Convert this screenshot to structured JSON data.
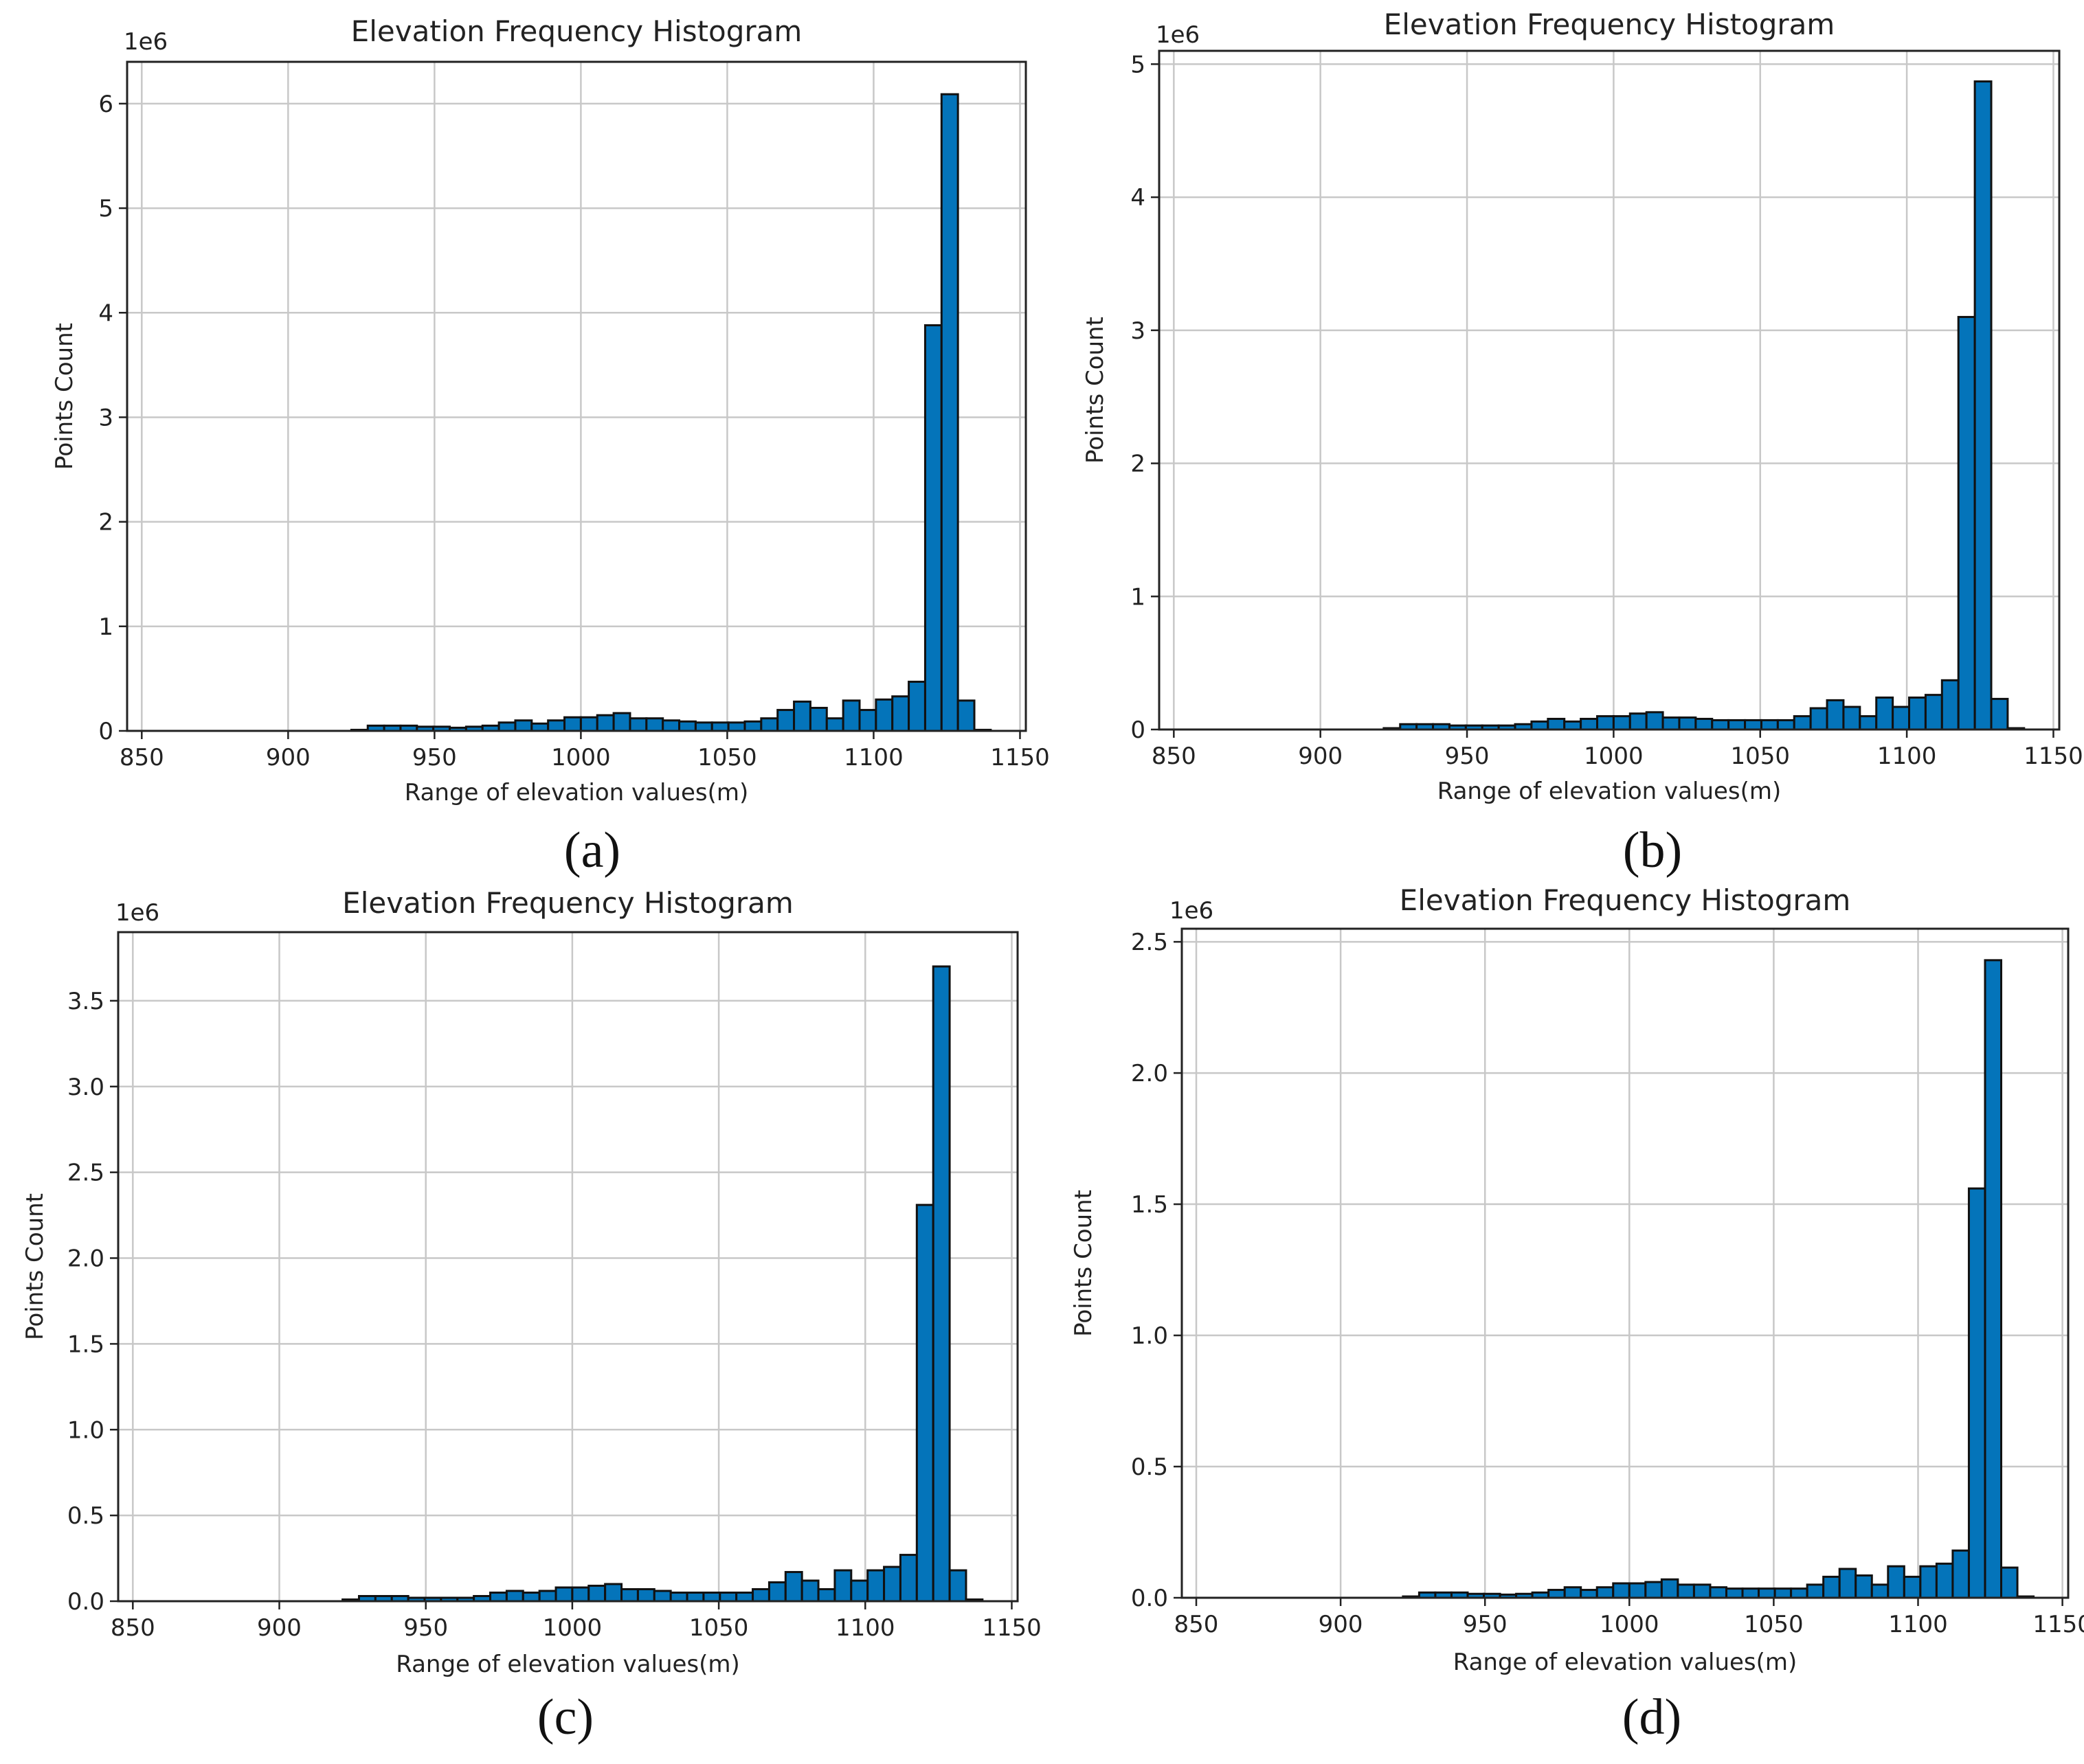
{
  "colors": {
    "bar_fill": "#0474ba",
    "bar_edge": "#111111",
    "grid": "#c8c8c8"
  },
  "captions": [
    "(a)",
    "(b)",
    "(c)",
    "(d)"
  ],
  "chart_data": [
    {
      "type": "bar",
      "title": "Elevation Frequency Histogram",
      "xlabel": "Range of elevation values(m)",
      "ylabel": "Points Count",
      "y_offset_label": "1e6",
      "xlim": [
        845,
        1152
      ],
      "ylim": [
        0,
        6.4
      ],
      "xticks": [
        850,
        900,
        950,
        1000,
        1050,
        1100,
        1150
      ],
      "yticks": [
        0,
        1,
        2,
        3,
        4,
        5,
        6
      ],
      "ytick_labels": [
        "0",
        "1",
        "2",
        "3",
        "4",
        "5",
        "6"
      ],
      "grid": true,
      "bin_start": 860,
      "bin_width": 5.6,
      "values": [
        0,
        0,
        0,
        0,
        0,
        0,
        0,
        0,
        0,
        0,
        0,
        0.01,
        0.05,
        0.05,
        0.05,
        0.04,
        0.04,
        0.03,
        0.04,
        0.05,
        0.08,
        0.1,
        0.07,
        0.1,
        0.13,
        0.13,
        0.15,
        0.17,
        0.12,
        0.12,
        0.1,
        0.09,
        0.08,
        0.08,
        0.08,
        0.09,
        0.12,
        0.2,
        0.28,
        0.22,
        0.12,
        0.29,
        0.2,
        0.3,
        0.33,
        0.47,
        3.88,
        6.09,
        0.29,
        0.01,
        0
      ]
    },
    {
      "type": "bar",
      "title": "Elevation Frequency Histogram",
      "xlabel": "Range of elevation values(m)",
      "ylabel": "Points Count",
      "y_offset_label": "1e6",
      "xlim": [
        845,
        1152
      ],
      "ylim": [
        0,
        5.1
      ],
      "xticks": [
        850,
        900,
        950,
        1000,
        1050,
        1100,
        1150
      ],
      "yticks": [
        0,
        1,
        2,
        3,
        4,
        5
      ],
      "ytick_labels": [
        "0",
        "1",
        "2",
        "3",
        "4",
        "5"
      ],
      "grid": true,
      "bin_start": 860,
      "bin_width": 5.6,
      "values": [
        0,
        0,
        0,
        0,
        0,
        0,
        0,
        0,
        0,
        0,
        0,
        0.01,
        0.04,
        0.04,
        0.04,
        0.03,
        0.03,
        0.03,
        0.03,
        0.04,
        0.06,
        0.08,
        0.06,
        0.08,
        0.1,
        0.1,
        0.12,
        0.13,
        0.09,
        0.09,
        0.08,
        0.07,
        0.07,
        0.07,
        0.07,
        0.07,
        0.1,
        0.16,
        0.22,
        0.17,
        0.1,
        0.24,
        0.17,
        0.24,
        0.26,
        0.37,
        3.1,
        4.87,
        0.23,
        0.01,
        0
      ]
    },
    {
      "type": "bar",
      "title": "Elevation Frequency Histogram",
      "xlabel": "Range of elevation values(m)",
      "ylabel": "Points Count",
      "y_offset_label": "1e6",
      "xlim": [
        845,
        1152
      ],
      "ylim": [
        0,
        3.9
      ],
      "xticks": [
        850,
        900,
        950,
        1000,
        1050,
        1100,
        1150
      ],
      "yticks": [
        0,
        0.5,
        1,
        1.5,
        2,
        2.5,
        3,
        3.5
      ],
      "ytick_labels": [
        "0.0",
        "0.5",
        "1.0",
        "1.5",
        "2.0",
        "2.5",
        "3.0",
        "3.5"
      ],
      "grid": true,
      "bin_start": 860,
      "bin_width": 5.6,
      "values": [
        0,
        0,
        0,
        0,
        0,
        0,
        0,
        0,
        0,
        0,
        0,
        0.01,
        0.03,
        0.03,
        0.03,
        0.02,
        0.02,
        0.02,
        0.02,
        0.03,
        0.05,
        0.06,
        0.05,
        0.06,
        0.08,
        0.08,
        0.09,
        0.1,
        0.07,
        0.07,
        0.06,
        0.05,
        0.05,
        0.05,
        0.05,
        0.05,
        0.07,
        0.11,
        0.17,
        0.12,
        0.07,
        0.18,
        0.12,
        0.18,
        0.2,
        0.27,
        2.31,
        3.7,
        0.18,
        0.01,
        0
      ]
    },
    {
      "type": "bar",
      "title": "Elevation Frequency Histogram",
      "xlabel": "Range of elevation values(m)",
      "ylabel": "Points Count",
      "y_offset_label": "1e6",
      "xlim": [
        845,
        1152
      ],
      "ylim": [
        0,
        2.55
      ],
      "xticks": [
        850,
        900,
        950,
        1000,
        1050,
        1100,
        1150
      ],
      "yticks": [
        0,
        0.5,
        1,
        1.5,
        2,
        2.5
      ],
      "ytick_labels": [
        "0.0",
        "0.5",
        "1.0",
        "1.5",
        "2.0",
        "2.5"
      ],
      "grid": true,
      "bin_start": 860,
      "bin_width": 5.6,
      "values": [
        0,
        0,
        0,
        0,
        0,
        0,
        0,
        0,
        0,
        0,
        0,
        0.005,
        0.02,
        0.02,
        0.02,
        0.015,
        0.015,
        0.012,
        0.015,
        0.02,
        0.03,
        0.04,
        0.03,
        0.04,
        0.055,
        0.055,
        0.06,
        0.07,
        0.05,
        0.05,
        0.04,
        0.035,
        0.035,
        0.035,
        0.035,
        0.035,
        0.05,
        0.08,
        0.11,
        0.085,
        0.05,
        0.12,
        0.08,
        0.12,
        0.13,
        0.18,
        1.56,
        2.43,
        0.115,
        0.005,
        0
      ]
    }
  ]
}
